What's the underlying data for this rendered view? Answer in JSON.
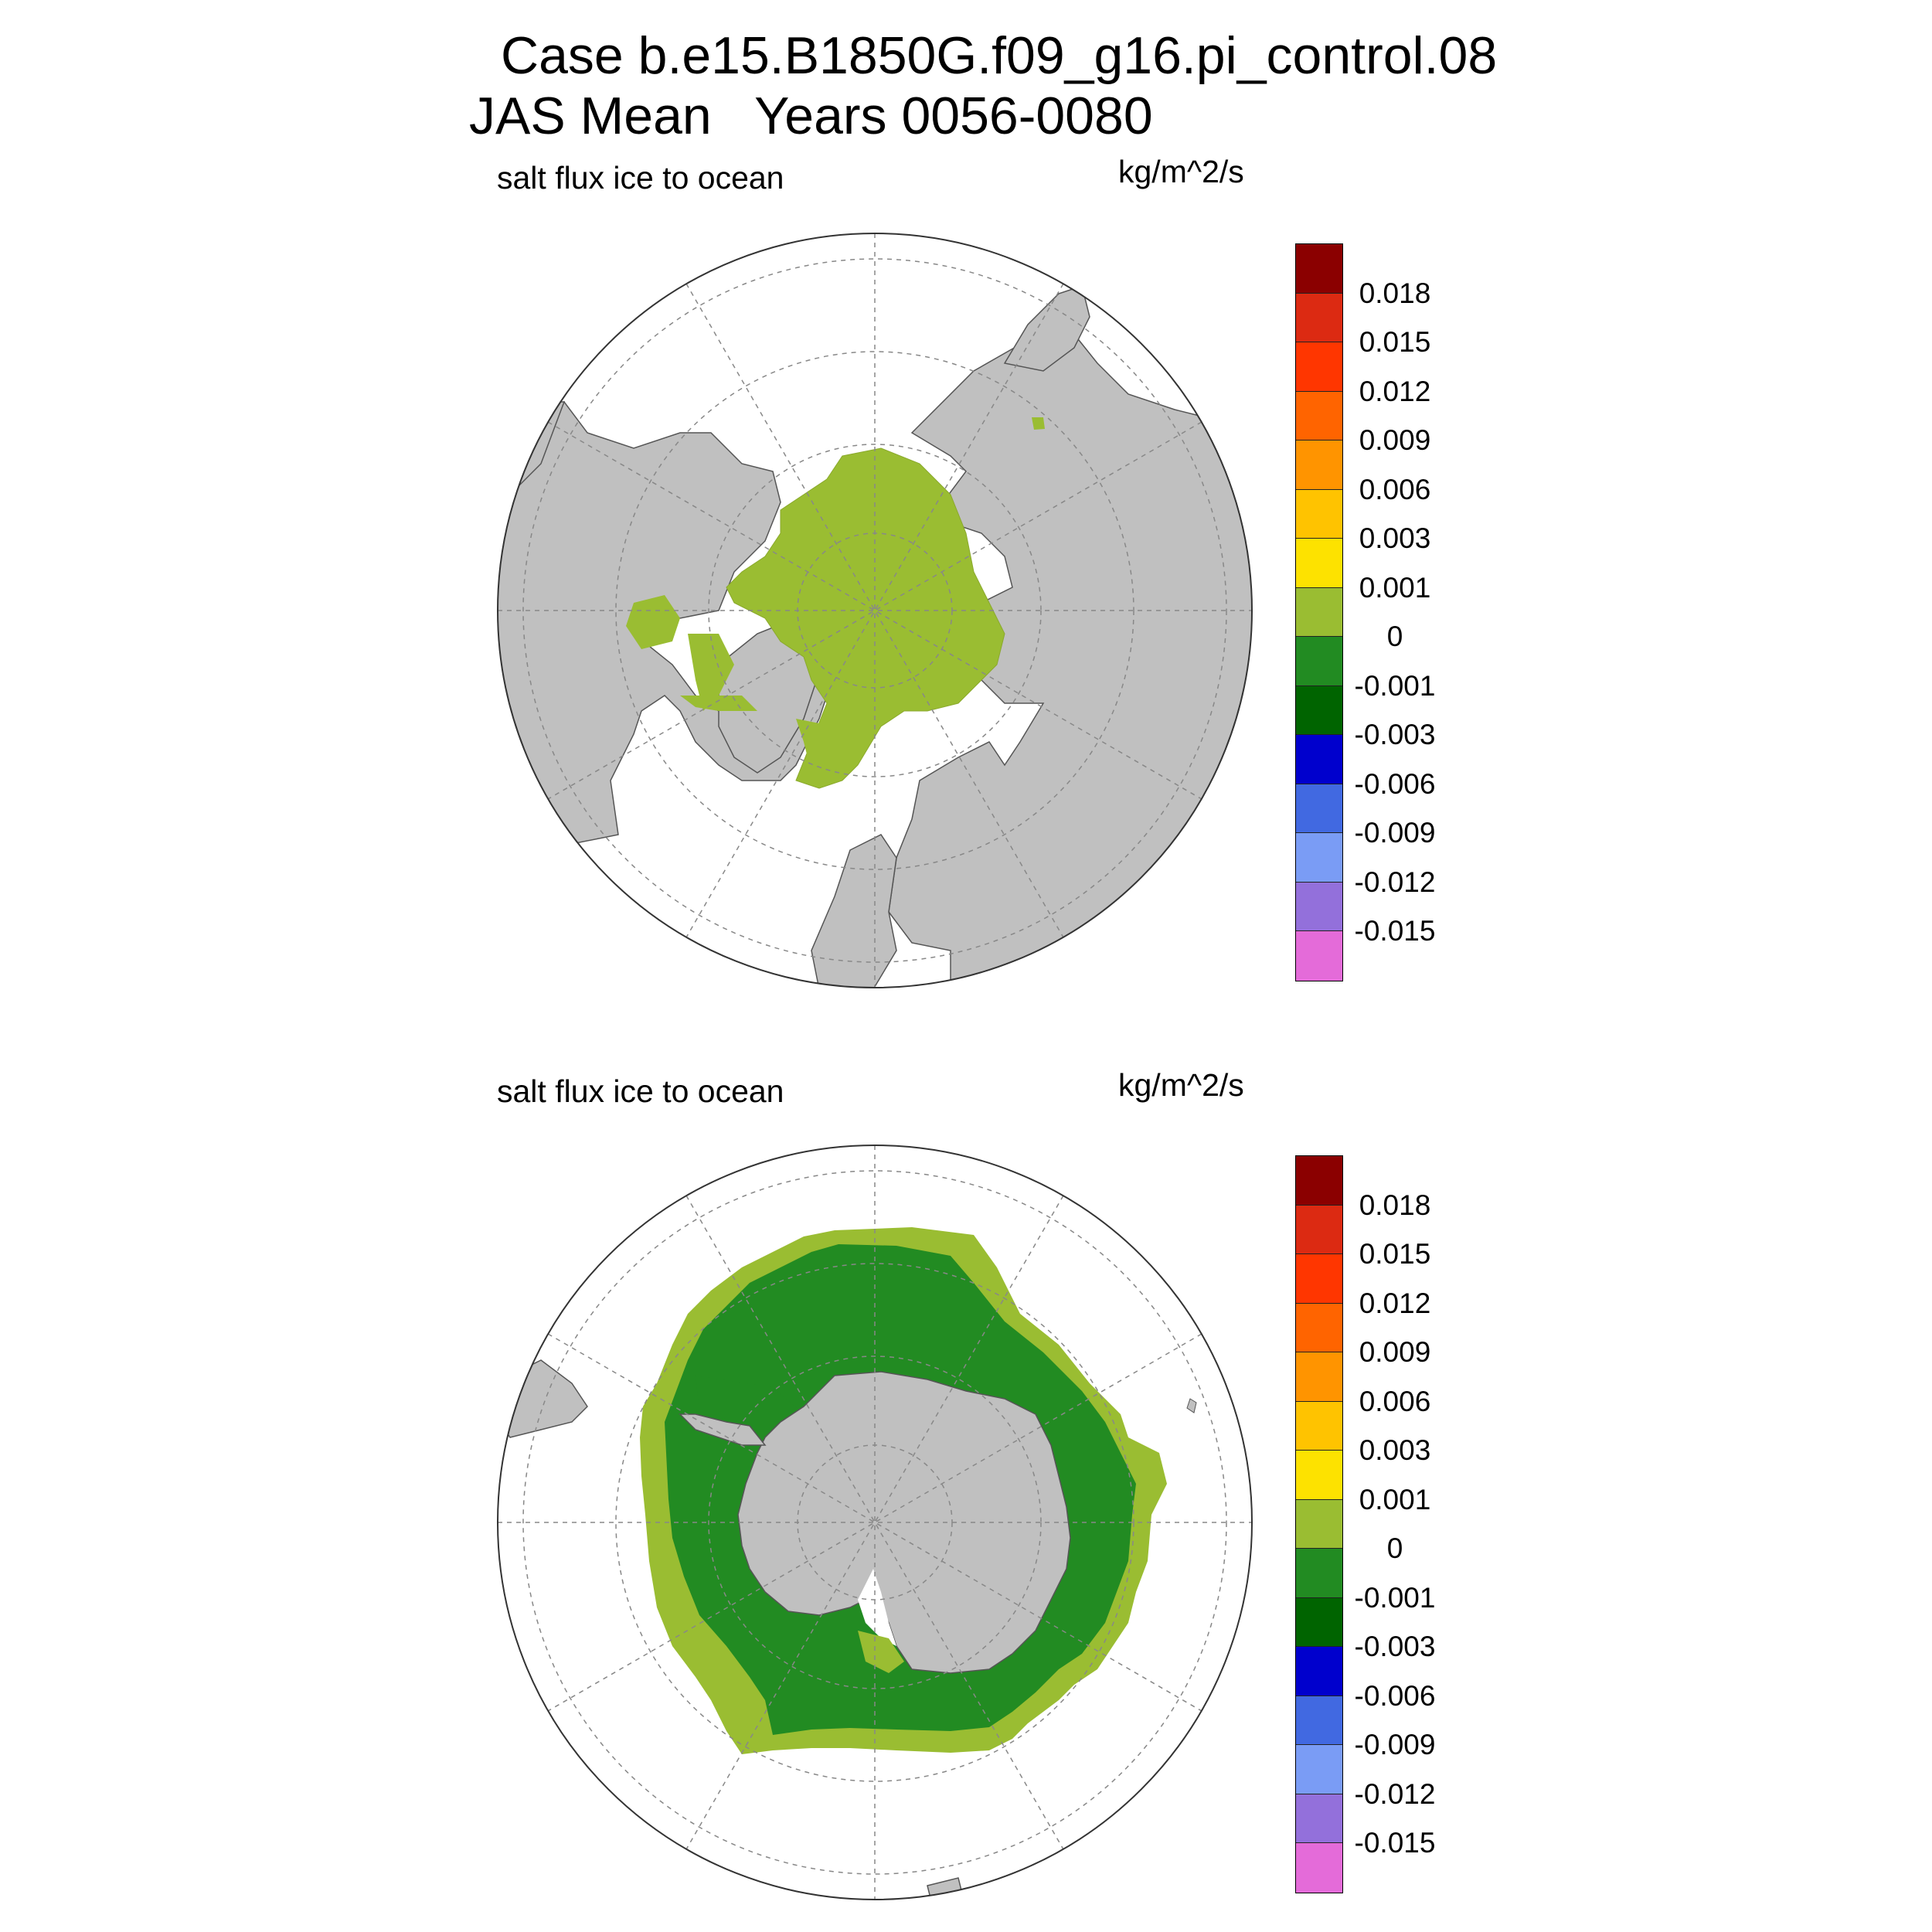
{
  "title": {
    "line1": "Case b.e15.B1850G.f09_g16.pi_control.08",
    "line2": "JAS Mean   Years 0056-0080"
  },
  "panels": [
    {
      "id": "north",
      "left_label": "salt flux ice to ocean",
      "right_label": "kg/m^2/s",
      "hemisphere": "north"
    },
    {
      "id": "south",
      "left_label": "salt flux ice to ocean",
      "right_label": "kg/m^2/s",
      "hemisphere": "south"
    }
  ],
  "colorbar": {
    "colors": [
      "#8b0000",
      "#dc2a12",
      "#ff3600",
      "#ff6400",
      "#ff9400",
      "#ffc300",
      "#fde200",
      "#9abd32",
      "#228b22",
      "#006400",
      "#0000cd",
      "#4169e1",
      "#7a9cf5",
      "#9370db",
      "#e46bd9"
    ],
    "labels": [
      "0.018",
      "0.015",
      "0.012",
      "0.009",
      "0.006",
      "0.003",
      "0.001",
      "0",
      "-0.001",
      "-0.003",
      "-0.006",
      "-0.009",
      "-0.012",
      "-0.015"
    ]
  },
  "chart_data": {
    "type": "polar-stereographic map",
    "variable": "salt flux ice to ocean",
    "units": "kg/m^2/s",
    "period": "JAS Mean   Years 0056-0080",
    "land_color": "#c0c0c0",
    "contour_levels": [
      -0.015,
      -0.012,
      -0.009,
      -0.006,
      -0.003,
      -0.001,
      0,
      0.001,
      0.003,
      0.006,
      0.009,
      0.012,
      0.015,
      0.018
    ],
    "panels": [
      {
        "hemisphere": "north",
        "field": "ice-covered Arctic Ocean in 0 to 0.001 class"
      },
      {
        "hemisphere": "south",
        "field": "inner pack in -0.001 to 0 class, outer ice edge in 0 to 0.001 class"
      }
    ]
  }
}
